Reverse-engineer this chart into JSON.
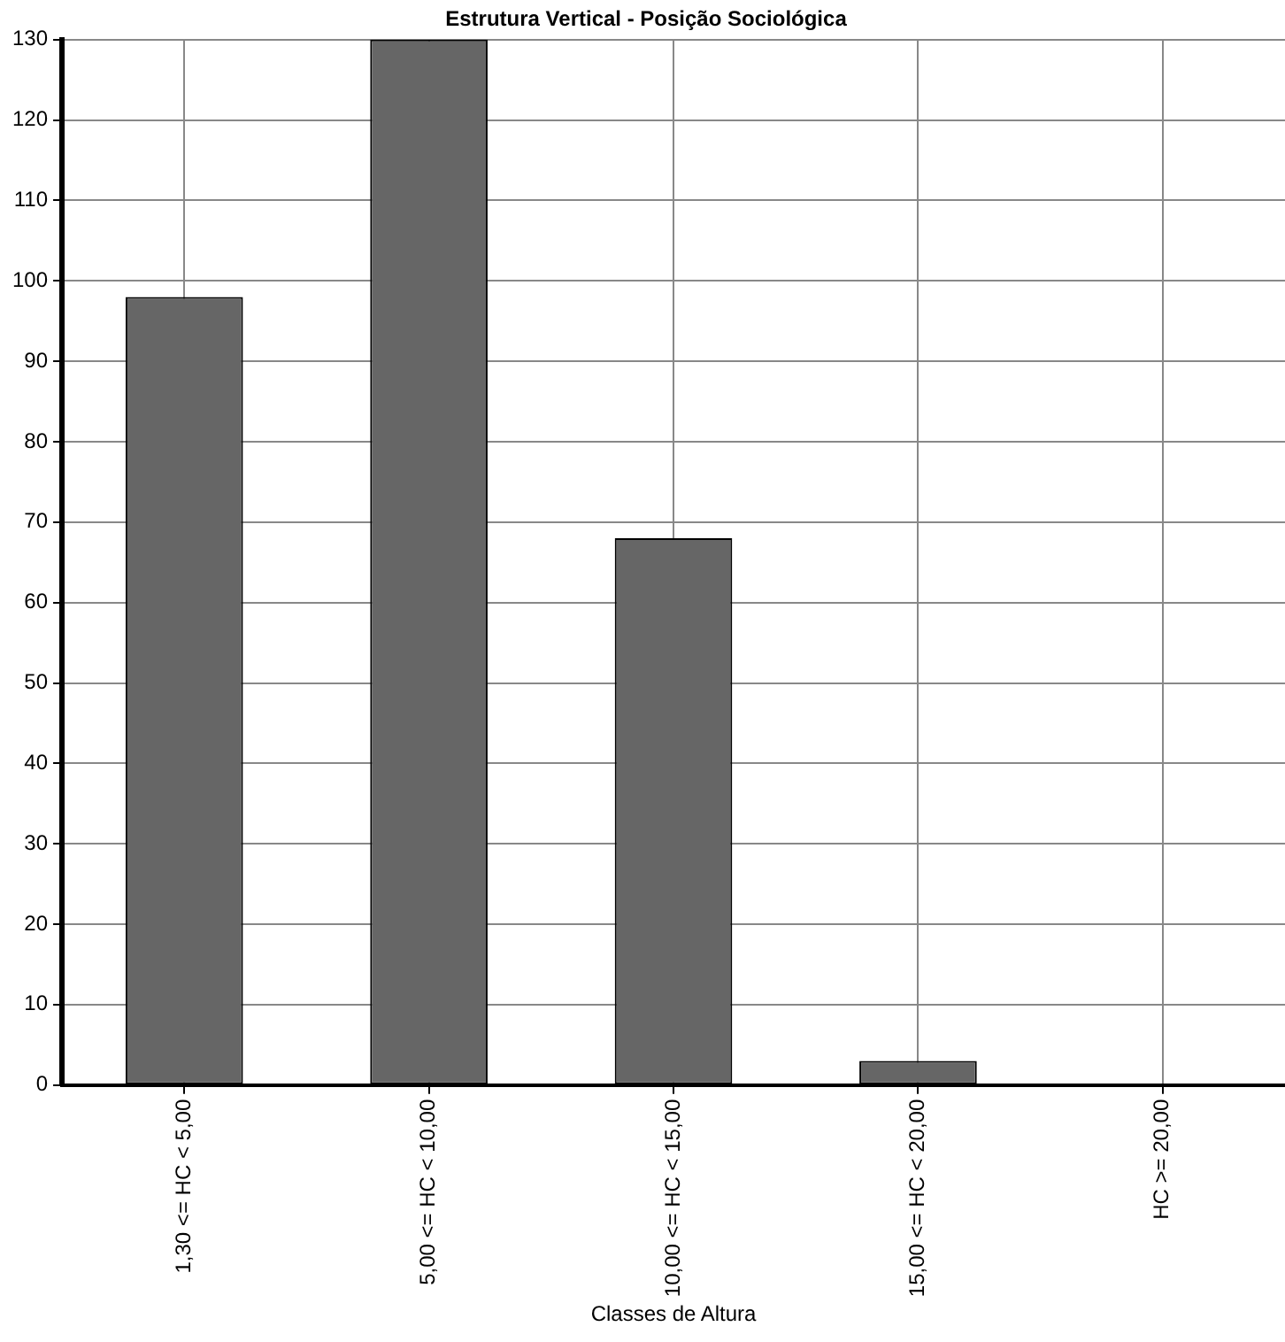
{
  "chart_data": {
    "type": "bar",
    "title": "Estrutura Vertical - Posição Sociológica",
    "xlabel": "Classes de Altura",
    "categories": [
      "1,30 <= HC < 5,00",
      "5,00 <= HC < 10,00",
      "10,00 <= HC < 15,00",
      "15,00 <= HC < 20,00",
      "HC >= 20,00"
    ],
    "values": [
      98,
      130,
      68,
      3,
      0
    ],
    "color": "#666666",
    "ylim": [
      0,
      130
    ],
    "yticks": [
      0,
      10,
      20,
      30,
      40,
      50,
      60,
      70,
      80,
      90,
      100,
      110,
      120,
      130
    ],
    "grid": true
  }
}
